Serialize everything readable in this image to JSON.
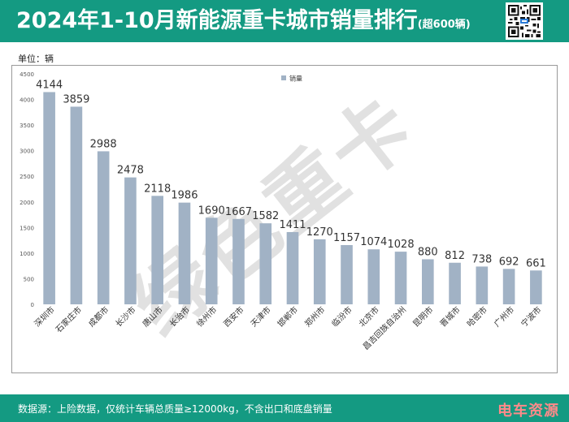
{
  "header": {
    "title": "2024年1-10月新能源重卡城市销量排行",
    "title_note": "(超600辆)"
  },
  "unit_label": "单位：辆",
  "footer": {
    "source": "数据源：上险数据，仅统计车辆总质量≥12000kg，不含出口和底盘销量",
    "brand": "电车资源"
  },
  "colors": {
    "header_bg": "#149a82",
    "bar": "#a1b2c5",
    "watermark": "#c9c9c9",
    "brand": "#ff8a8a"
  },
  "watermark": "绿色重卡",
  "chart_data": {
    "type": "bar",
    "title": "",
    "xlabel": "",
    "ylabel": "",
    "legend": [
      "销量"
    ],
    "legend_position": "top",
    "ylim": [
      0,
      4500
    ],
    "yticks": [
      0,
      500,
      1000,
      1500,
      2000,
      2500,
      3000,
      3500,
      4000,
      4500
    ],
    "grid": false,
    "categories": [
      "深圳市",
      "石家庄市",
      "成都市",
      "长沙市",
      "唐山市",
      "长治市",
      "徐州市",
      "西安市",
      "天津市",
      "邯郸市",
      "郑州市",
      "临汾市",
      "北京市",
      "昌吉回族自治州",
      "昆明市",
      "晋城市",
      "哈密市",
      "广州市",
      "宁波市"
    ],
    "series": [
      {
        "name": "销量",
        "values": [
          4144,
          3859,
          2988,
          2478,
          2118,
          1986,
          1690,
          1667,
          1582,
          1411,
          1270,
          1157,
          1074,
          1028,
          880,
          812,
          738,
          692,
          661
        ]
      }
    ]
  }
}
